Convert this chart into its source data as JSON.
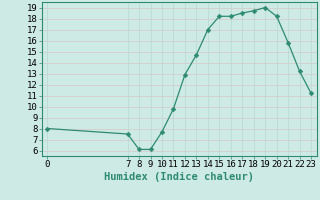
{
  "xlabel": "Humidex (Indice chaleur)",
  "x_pts": [
    0,
    7,
    8,
    9,
    10,
    11,
    12,
    13,
    14,
    15,
    16,
    17,
    18,
    19,
    20,
    21,
    22,
    23
  ],
  "y_pts": [
    8.0,
    7.5,
    6.1,
    6.1,
    7.7,
    9.8,
    12.9,
    14.7,
    17.0,
    18.2,
    18.2,
    18.5,
    18.7,
    19.0,
    18.2,
    15.8,
    13.2,
    11.2
  ],
  "line_color": "#2e8b72",
  "marker_size": 2.5,
  "bg_color": "#cdeae4",
  "hgrid_color": "#d8c8c8",
  "vgrid_color": "#b8d8d2",
  "xlim": [
    -0.5,
    23.5
  ],
  "ylim": [
    5.5,
    19.5
  ],
  "xticks": [
    0,
    7,
    8,
    9,
    10,
    11,
    12,
    13,
    14,
    15,
    16,
    17,
    18,
    19,
    20,
    21,
    22,
    23
  ],
  "yticks": [
    6,
    7,
    8,
    9,
    10,
    11,
    12,
    13,
    14,
    15,
    16,
    17,
    18,
    19
  ],
  "tick_fontsize": 6.5,
  "label_fontsize": 7.5
}
